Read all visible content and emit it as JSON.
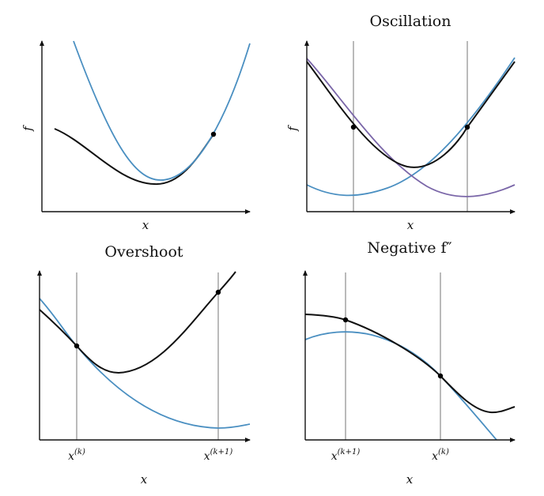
{
  "panels": [
    {
      "id": "p1",
      "title": "",
      "xlabel": "x",
      "ylabel": "f",
      "ticks": []
    },
    {
      "id": "p2",
      "title": "Oscillation",
      "xlabel": "x",
      "ylabel": "f",
      "ticks": []
    },
    {
      "id": "p3",
      "title": "Overshoot",
      "xlabel": "x",
      "ylabel": "",
      "ticks": [
        {
          "base": "x",
          "sup": "(k)"
        },
        {
          "base": "x",
          "sup": "(k+1)"
        }
      ]
    },
    {
      "id": "p4",
      "title": "Negative f″",
      "xlabel": "x",
      "ylabel": "",
      "ticks": [
        {
          "base": "x",
          "sup": "(k+1)"
        },
        {
          "base": "x",
          "sup": "(k)"
        }
      ]
    }
  ],
  "colors": {
    "function": "#111111",
    "quadratic_model": "#4a8fc1",
    "second_model": "#7a66a8",
    "guide_line": "#a8a8a8"
  }
}
